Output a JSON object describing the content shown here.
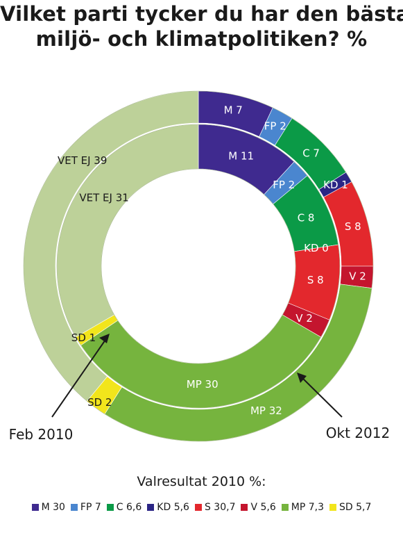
{
  "chart_data": {
    "type": "donut",
    "title": [
      "Vilket parti tycker du har den bästa",
      "miljö- och klimatpolitiken? %"
    ],
    "series": [
      {
        "name": "Okt 2012",
        "ring": "outer",
        "slices": [
          {
            "label": "M 7",
            "party": "M",
            "value": 7,
            "color": "#3f2a8f"
          },
          {
            "label": "FP 2",
            "party": "FP",
            "value": 2,
            "color": "#4a86cf"
          },
          {
            "label": "C 7",
            "party": "C",
            "value": 7,
            "color": "#0b9a47"
          },
          {
            "label": "KD 1",
            "party": "KD",
            "value": 1,
            "color": "#2b2585"
          },
          {
            "label": "S 8",
            "party": "S",
            "value": 8,
            "color": "#e3282d"
          },
          {
            "label": "V 2",
            "party": "V",
            "value": 2,
            "color": "#c4152e"
          },
          {
            "label": "MP 32",
            "party": "MP",
            "value": 32,
            "color": "#76b43e"
          },
          {
            "label": "SD 2",
            "party": "SD",
            "value": 2,
            "color": "#f2e51c"
          },
          {
            "label": "VET EJ 39",
            "party": "VET EJ",
            "value": 39,
            "color": "#bdd199"
          }
        ]
      },
      {
        "name": "Feb 2010",
        "ring": "inner",
        "slices": [
          {
            "label": "M 11",
            "party": "M",
            "value": 11,
            "color": "#3f2a8f"
          },
          {
            "label": "FP 2",
            "party": "FP",
            "value": 2,
            "color": "#4a86cf"
          },
          {
            "label": "C 8",
            "party": "C",
            "value": 8,
            "color": "#0b9a47"
          },
          {
            "label": "KD 0",
            "party": "KD",
            "value": 0,
            "color": "#2b2585"
          },
          {
            "label": "S 8",
            "party": "S",
            "value": 8,
            "color": "#e3282d"
          },
          {
            "label": "V 2",
            "party": "V",
            "value": 2,
            "color": "#c4152e"
          },
          {
            "label": "MP 30",
            "party": "MP",
            "value": 30,
            "color": "#76b43e"
          },
          {
            "label": "SD 1",
            "party": "SD",
            "value": 1,
            "color": "#f2e51c"
          },
          {
            "label": "VET EJ 31",
            "party": "VET EJ",
            "value": 31,
            "color": "#bdd199"
          }
        ]
      }
    ],
    "callouts": {
      "inner": "Feb 2010",
      "outer": "Okt 2012"
    },
    "legend": {
      "title": "Valresultat 2010 %:",
      "placement": "bottom",
      "items": [
        {
          "label": "M 30",
          "value": 30,
          "color": "#3f2a8f"
        },
        {
          "label": "FP 7",
          "value": 7,
          "color": "#4a86cf"
        },
        {
          "label": "C 6,6",
          "value": 6.6,
          "color": "#0b9a47"
        },
        {
          "label": "KD 5,6",
          "value": 5.6,
          "color": "#2b2585"
        },
        {
          "label": "S 30,7",
          "value": 30.7,
          "color": "#e3282d"
        },
        {
          "label": "V 5,6",
          "value": 5.6,
          "color": "#c4152e"
        },
        {
          "label": "MP 7,3",
          "value": 7.3,
          "color": "#76b43e"
        },
        {
          "label": "SD 5,7",
          "value": 5.7,
          "color": "#f2e51c"
        }
      ]
    }
  }
}
